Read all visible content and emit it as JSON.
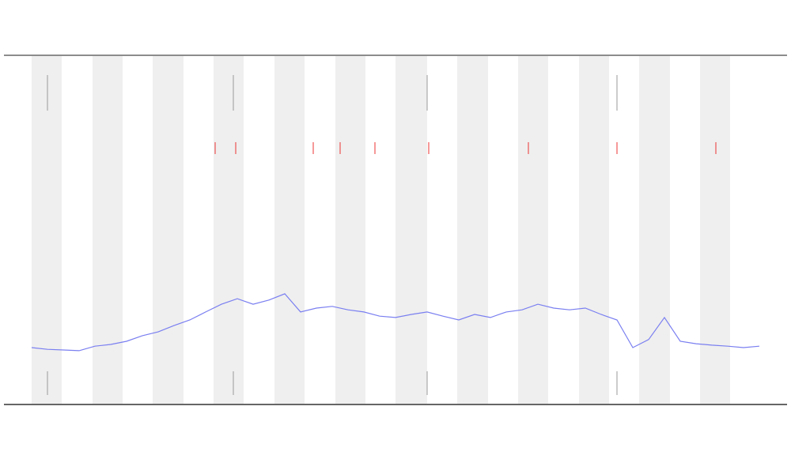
{
  "chart_data": {
    "type": "line",
    "color": "#7a7ff0",
    "x": [
      0,
      1,
      2,
      3,
      4,
      5,
      6,
      7,
      8,
      9,
      10,
      11,
      12,
      13,
      14,
      15,
      16,
      17,
      18,
      19,
      20,
      21,
      22,
      23,
      24,
      25,
      26,
      27,
      28,
      29,
      30,
      31,
      32,
      33,
      34,
      35,
      36,
      37,
      38,
      39,
      40,
      41,
      42,
      43,
      44,
      45,
      46
    ],
    "values": [
      16.3,
      15.8,
      15.6,
      15.4,
      16.7,
      17.2,
      18.1,
      19.7,
      20.8,
      22.6,
      24.2,
      26.5,
      28.7,
      30.3,
      28.7,
      29.9,
      31.7,
      26.5,
      27.6,
      28.1,
      27.1,
      26.5,
      25.3,
      24.9,
      25.8,
      26.5,
      25.3,
      24.2,
      25.8,
      24.9,
      26.5,
      27.1,
      28.7,
      27.6,
      27.1,
      27.6,
      25.8,
      24.2,
      16.3,
      18.6,
      24.9,
      18.1,
      17.4,
      17.0,
      16.7,
      16.3,
      16.7
    ],
    "xlim": [
      -1.75,
      47.75
    ],
    "ylim": [
      0,
      100
    ]
  }
}
